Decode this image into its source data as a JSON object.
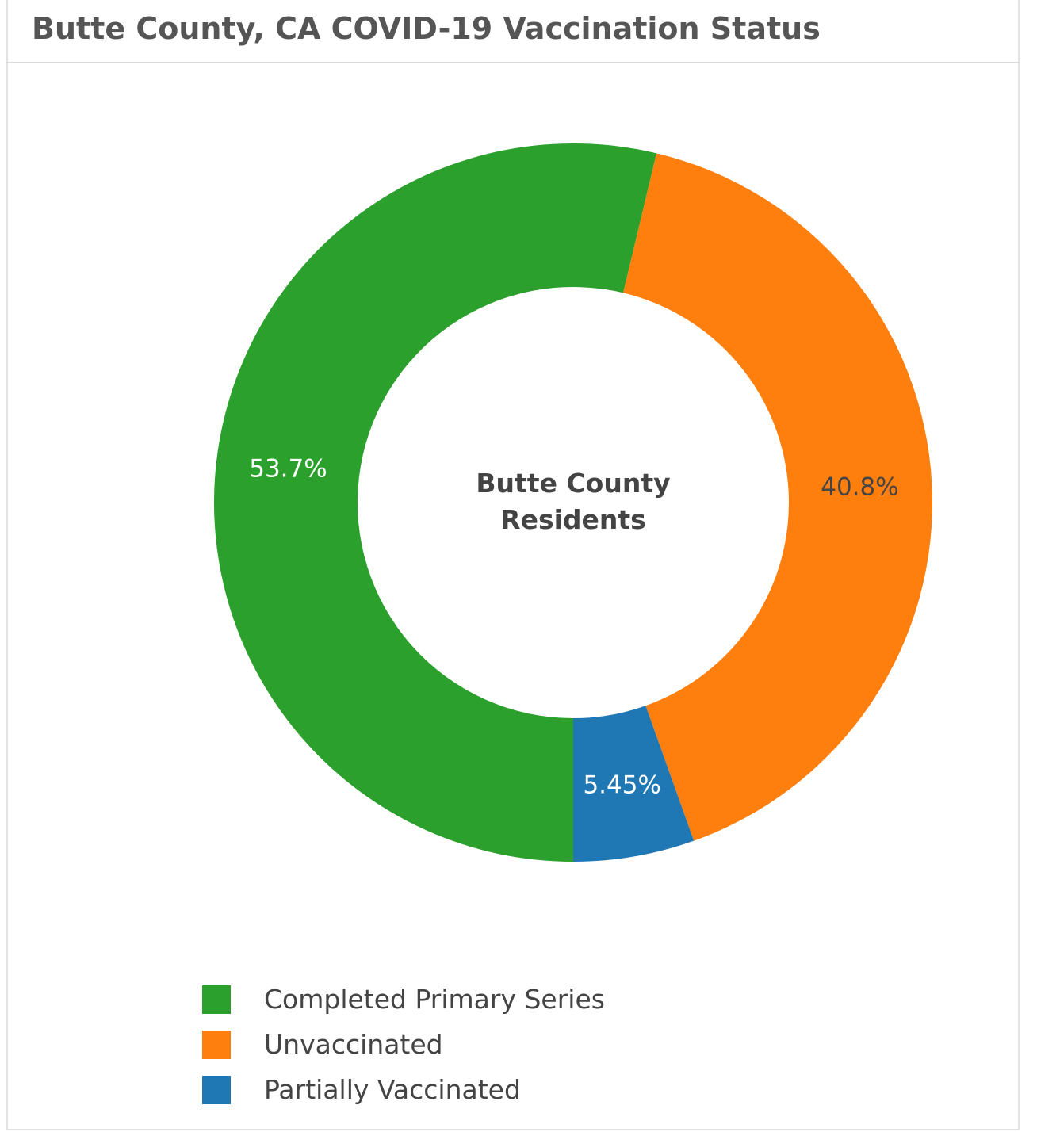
{
  "header": {
    "title": "Butte County, CA COVID-19 Vaccination Status"
  },
  "chart_data": {
    "type": "pie",
    "title": "Butte County, CA COVID-19 Vaccination Status",
    "center_label": [
      "Butte County",
      "Residents"
    ],
    "slices": [
      {
        "name": "Completed Primary Series",
        "value": 53.7,
        "label": "53.7%",
        "color": "#2ca02c",
        "label_color": "#ffffff"
      },
      {
        "name": "Unvaccinated",
        "value": 40.8,
        "label": "40.8%",
        "color": "#ff7f0e",
        "label_color": "#444444"
      },
      {
        "name": "Partially Vaccinated",
        "value": 5.45,
        "label": "5.45%",
        "color": "#1f77b4",
        "label_color": "#ffffff"
      }
    ],
    "legend_position": "bottom-left"
  },
  "legend": {
    "items": [
      {
        "label": "Completed Primary Series",
        "color": "#2ca02c"
      },
      {
        "label": "Unvaccinated",
        "color": "#ff7f0e"
      },
      {
        "label": "Partially Vaccinated",
        "color": "#1f77b4"
      }
    ]
  }
}
